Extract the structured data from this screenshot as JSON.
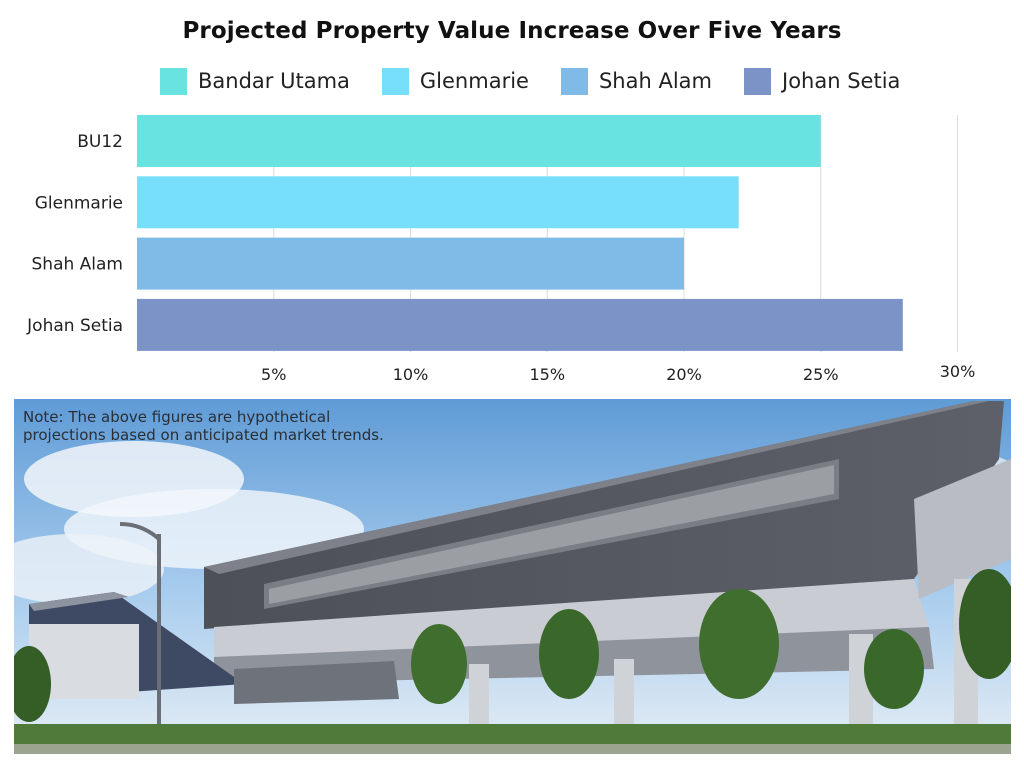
{
  "chart_data": {
    "type": "bar",
    "orientation": "horizontal",
    "title": "Projected Property Value Increase Over Five Years",
    "categories": [
      "BU12",
      "Glenmarie",
      "Shah Alam",
      "Johan Setia"
    ],
    "values": [
      25,
      22,
      20,
      28
    ],
    "unit": "%",
    "xlim": [
      0,
      30
    ],
    "xticks": [
      "5%",
      "10%",
      "15%",
      "20%",
      "25%",
      "30%"
    ],
    "xtick_values": [
      5,
      10,
      15,
      20,
      25,
      30
    ],
    "grid": "vertical",
    "legend_position": "top",
    "legend": [
      {
        "name": "Bandar Utama",
        "color": "#69e2e2"
      },
      {
        "name": "Glenmarie",
        "color": "#78dffb"
      },
      {
        "name": "Shah Alam",
        "color": "#7fbbe6"
      },
      {
        "name": "Johan Setia",
        "color": "#7b93c6"
      }
    ],
    "bar_colors": [
      "#69e2e2",
      "#78dffb",
      "#7fbbe6",
      "#7b93c6"
    ]
  },
  "note": {
    "line1": "Note: The above figures are hypothetical",
    "line2": "projections based on anticipated market trends."
  },
  "photo": {
    "subject": "elevated-train-station-rendering",
    "colors": {
      "sky": "#8ab8e2",
      "facade": "#55585f",
      "trees": "#3f6e2e"
    }
  }
}
